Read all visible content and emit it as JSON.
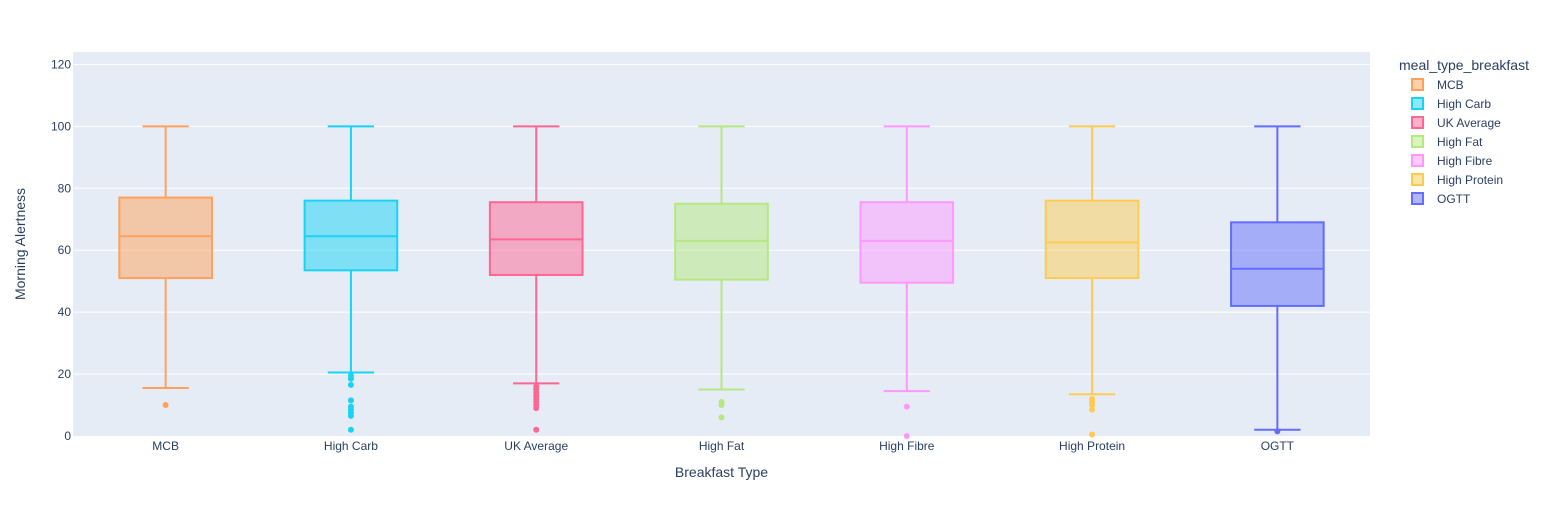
{
  "chart_data": {
    "type": "box",
    "xlabel": "Breakfast Type",
    "ylabel": "Morning Alertness",
    "ylim": [
      0,
      124
    ],
    "y_ticks": [
      0,
      20,
      40,
      60,
      80,
      100,
      120
    ],
    "grid": true,
    "legend": {
      "title": "meal_type_breakfast",
      "position": "right"
    },
    "categories": [
      "MCB",
      "High Carb",
      "UK Average",
      "High Fat",
      "High Fibre",
      "High Protein",
      "OGTT"
    ],
    "series": [
      {
        "name": "MCB",
        "color": "#FFA15A",
        "whisker_low": 15.5,
        "q1": 51,
        "median": 64.5,
        "q3": 77,
        "whisker_high": 100,
        "outliers": [
          10
        ]
      },
      {
        "name": "High Carb",
        "color": "#19D3F3",
        "whisker_low": 20.5,
        "q1": 53.5,
        "median": 64.5,
        "q3": 76,
        "whisker_high": 100,
        "outliers": [
          19.5,
          18.5,
          16.5,
          11.5,
          9.5,
          8.5,
          7.5,
          6.5,
          2
        ]
      },
      {
        "name": "UK Average",
        "color": "#FF6692",
        "whisker_low": 17,
        "q1": 52,
        "median": 63.5,
        "q3": 75.5,
        "whisker_high": 100,
        "outliers": [
          16,
          15,
          14,
          13,
          12,
          11,
          10,
          9,
          2
        ]
      },
      {
        "name": "High Fat",
        "color": "#B6E880",
        "whisker_low": 15,
        "q1": 50.5,
        "median": 63,
        "q3": 75,
        "whisker_high": 100,
        "outliers": [
          11,
          10,
          6
        ]
      },
      {
        "name": "High Fibre",
        "color": "#FF97FF",
        "whisker_low": 14.5,
        "q1": 49.5,
        "median": 63,
        "q3": 75.5,
        "whisker_high": 100,
        "outliers": [
          9.5,
          0
        ]
      },
      {
        "name": "High Protein",
        "color": "#FECB52",
        "whisker_low": 13.5,
        "q1": 51,
        "median": 62.5,
        "q3": 76,
        "whisker_high": 100,
        "outliers": [
          12,
          11,
          10,
          8.5,
          0.5
        ]
      },
      {
        "name": "OGTT",
        "color": "#636EFA",
        "whisker_low": 2,
        "q1": 42,
        "median": 54,
        "q3": 69,
        "whisker_high": 100,
        "outliers": [
          1.5
        ]
      }
    ]
  }
}
